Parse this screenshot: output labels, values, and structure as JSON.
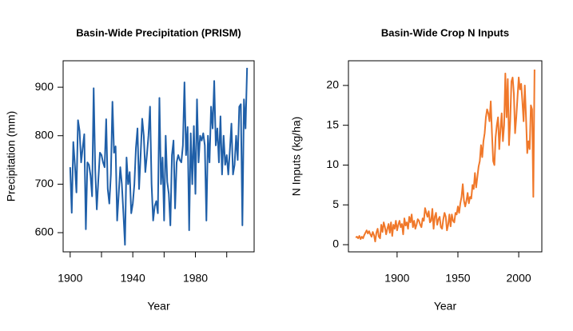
{
  "chart_data": [
    {
      "type": "line",
      "title": "Basin-Wide Precipitation (PRISM)",
      "xlabel": "Year",
      "ylabel": "Precipitation (mm)",
      "xlim": [
        1895.5,
        2017.5
      ],
      "xticks": [
        1900,
        1920,
        1940,
        1960,
        1980,
        2000
      ],
      "xticklabels": [
        "1900",
        null,
        "1940",
        null,
        "1980",
        null
      ],
      "ylim": [
        560.4,
        954.6
      ],
      "yticks": [
        600,
        700,
        800,
        900
      ],
      "series": [
        {
          "name": "Precipitation",
          "color": "#1f5fa8",
          "x": [
            1900,
            1901,
            1902,
            1903,
            1904,
            1905,
            1906,
            1907,
            1908,
            1909,
            1910,
            1911,
            1912,
            1913,
            1914,
            1915,
            1916,
            1917,
            1918,
            1919,
            1920,
            1921,
            1922,
            1923,
            1924,
            1925,
            1926,
            1927,
            1928,
            1929,
            1930,
            1931,
            1932,
            1933,
            1934,
            1935,
            1936,
            1937,
            1938,
            1939,
            1940,
            1941,
            1942,
            1943,
            1944,
            1945,
            1946,
            1947,
            1948,
            1949,
            1950,
            1951,
            1952,
            1953,
            1954,
            1955,
            1956,
            1957,
            1958,
            1959,
            1960,
            1961,
            1962,
            1963,
            1964,
            1965,
            1966,
            1967,
            1968,
            1969,
            1970,
            1971,
            1972,
            1973,
            1974,
            1975,
            1976,
            1977,
            1978,
            1979,
            1980,
            1981,
            1982,
            1983,
            1984,
            1985,
            1986,
            1987,
            1988,
            1989,
            1990,
            1991,
            1992,
            1993,
            1994,
            1995,
            1996,
            1997,
            1998,
            1999,
            2000,
            2001,
            2002,
            2003,
            2004,
            2005,
            2006,
            2007,
            2008,
            2009,
            2010,
            2011,
            2012,
            2013
          ],
          "values": [
            735,
            641,
            787,
            740,
            683,
            832,
            810,
            745,
            775,
            803,
            607,
            745,
            740,
            718,
            675,
            898,
            730,
            648,
            710,
            765,
            760,
            745,
            735,
            834,
            690,
            660,
            720,
            870,
            765,
            778,
            625,
            680,
            735,
            700,
            640,
            575,
            755,
            700,
            725,
            640,
            660,
            700,
            775,
            815,
            690,
            760,
            835,
            800,
            725,
            760,
            800,
            860,
            700,
            625,
            655,
            665,
            640,
            878,
            700,
            755,
            625,
            800,
            705,
            680,
            615,
            760,
            790,
            650,
            745,
            760,
            750,
            745,
            780,
            910,
            760,
            818,
            605,
            805,
            700,
            820,
            680,
            875,
            745,
            800,
            790,
            805,
            780,
            625,
            800,
            745,
            860,
            815,
            913,
            780,
            815,
            745,
            840,
            720,
            800,
            740,
            760,
            720,
            770,
            825,
            720,
            740,
            800,
            750,
            860,
            865,
            615,
            875,
            815,
            940
          ]
        }
      ]
    },
    {
      "type": "line",
      "title": "Basin-Wide Crop N Inputs",
      "xlabel": "Year",
      "ylabel": "N Inputs (kg/ha)",
      "xlim": [
        1860,
        2019
      ],
      "xticks": [
        1900,
        1950,
        2000
      ],
      "ylim": [
        -0.9,
        23.1
      ],
      "yticks": [
        0,
        5,
        10,
        15,
        20
      ],
      "series": [
        {
          "name": "N Inputs",
          "color": "#f0782a",
          "x": [
            1866,
            1867,
            1868,
            1869,
            1870,
            1871,
            1872,
            1873,
            1874,
            1875,
            1876,
            1877,
            1878,
            1879,
            1880,
            1881,
            1882,
            1883,
            1884,
            1885,
            1886,
            1887,
            1888,
            1889,
            1890,
            1891,
            1892,
            1893,
            1894,
            1895,
            1896,
            1897,
            1898,
            1899,
            1900,
            1901,
            1902,
            1903,
            1904,
            1905,
            1906,
            1907,
            1908,
            1909,
            1910,
            1911,
            1912,
            1913,
            1914,
            1915,
            1916,
            1917,
            1918,
            1919,
            1920,
            1921,
            1922,
            1923,
            1924,
            1925,
            1926,
            1927,
            1928,
            1929,
            1930,
            1931,
            1932,
            1933,
            1934,
            1935,
            1936,
            1937,
            1938,
            1939,
            1940,
            1941,
            1942,
            1943,
            1944,
            1945,
            1946,
            1947,
            1948,
            1949,
            1950,
            1951,
            1952,
            1953,
            1954,
            1955,
            1956,
            1957,
            1958,
            1959,
            1960,
            1961,
            1962,
            1963,
            1964,
            1965,
            1966,
            1967,
            1968,
            1969,
            1970,
            1971,
            1972,
            1973,
            1974,
            1975,
            1976,
            1977,
            1978,
            1979,
            1980,
            1981,
            1982,
            1983,
            1984,
            1985,
            1986,
            1987,
            1988,
            1989,
            1990,
            1991,
            1992,
            1993,
            1994,
            1995,
            1996,
            1997,
            1998,
            1999,
            2000,
            2001,
            2002,
            2003,
            2004,
            2005,
            2006,
            2007,
            2008,
            2009,
            2010,
            2011,
            2012,
            2013
          ],
          "values": [
            0.9,
            1.0,
            0.8,
            1.1,
            0.7,
            1.0,
            0.8,
            1.2,
            1.5,
            1.8,
            1.4,
            1.7,
            1.3,
            1.0,
            1.6,
            1.2,
            0.4,
            1.5,
            2.0,
            1.0,
            0.8,
            2.5,
            1.6,
            2.8,
            2.2,
            1.3,
            2.0,
            2.6,
            1.5,
            2.8,
            1.1,
            2.5,
            2.0,
            3.0,
            1.8,
            2.5,
            3.0,
            2.2,
            2.6,
            1.3,
            3.3,
            2.4,
            2.8,
            2.0,
            3.5,
            2.8,
            3.8,
            2.2,
            3.0,
            2.0,
            2.5,
            3.2,
            3.0,
            2.5,
            2.2,
            3.3,
            3.0,
            4.6,
            4.0,
            3.5,
            4.2,
            2.8,
            3.0,
            4.5,
            2.0,
            3.5,
            4.0,
            2.5,
            3.2,
            3.5,
            2.2,
            2.0,
            3.2,
            4.0,
            3.5,
            1.8,
            2.5,
            3.8,
            2.3,
            3.8,
            3.0,
            2.8,
            4.0,
            3.8,
            4.8,
            4.0,
            5.2,
            6.0,
            7.6,
            5.5,
            4.8,
            5.5,
            6.5,
            5.2,
            6.0,
            5.8,
            7.5,
            7.0,
            9.0,
            7.2,
            8.5,
            9.8,
            10.5,
            12.5,
            11.0,
            13.0,
            14.0,
            16.0,
            17.0,
            16.5,
            15.5,
            18.0,
            14.0,
            10.5,
            10.0,
            13.5,
            15.0,
            16.0,
            12.0,
            14.5,
            16.5,
            13.0,
            15.0,
            21.5,
            16.0,
            20.8,
            12.5,
            15.5,
            20.5,
            21.0,
            19.0,
            14.0,
            16.0,
            18.5,
            21.0,
            19.5,
            20.2,
            18.0,
            15.5,
            20.0,
            16.0,
            11.5,
            13.0,
            12.0,
            17.5,
            17.0,
            6.0,
            22.0
          ]
        }
      ]
    }
  ]
}
